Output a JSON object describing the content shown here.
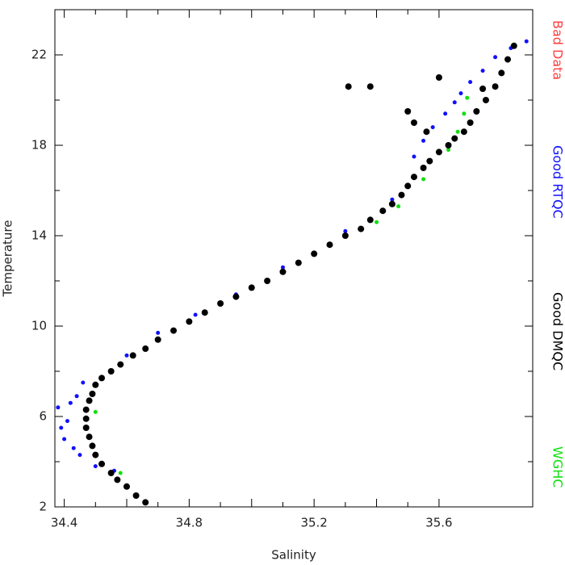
{
  "chart_data": {
    "type": "scatter",
    "x_label": "Salinity",
    "y_label": "Temperature",
    "xlim": [
      34.37,
      35.9
    ],
    "ylim": [
      2,
      24
    ],
    "xticks": [
      34.4,
      34.8,
      35.2,
      35.6
    ],
    "yticks": [
      2,
      6,
      10,
      14,
      18,
      22
    ],
    "series": [
      {
        "name": "Bad Data",
        "color": "#ff4040",
        "x": [],
        "values": []
      },
      {
        "name": "Good RTQC",
        "color": "#1010ff",
        "x": [
          34.38,
          34.39,
          34.4,
          34.41,
          34.42,
          34.43,
          34.44,
          34.45,
          34.46,
          34.5,
          34.56,
          34.6,
          34.7,
          34.82,
          34.95,
          35.1,
          35.3,
          35.45,
          35.52,
          35.55,
          35.58,
          35.62,
          35.65,
          35.67,
          35.7,
          35.74,
          35.78,
          35.83,
          35.88
        ],
        "values": [
          6.4,
          5.5,
          5.0,
          5.8,
          6.6,
          4.6,
          6.9,
          4.3,
          7.5,
          3.8,
          3.6,
          8.7,
          9.7,
          10.5,
          11.4,
          12.6,
          14.2,
          15.6,
          17.5,
          18.2,
          18.8,
          19.4,
          19.9,
          20.3,
          20.8,
          21.3,
          21.9,
          22.3,
          22.6
        ]
      },
      {
        "name": "Good DMQC",
        "color": "#000000",
        "x": [
          34.66,
          34.63,
          34.6,
          34.57,
          34.55,
          34.52,
          34.5,
          34.49,
          34.48,
          34.47,
          34.47,
          34.47,
          34.48,
          34.49,
          34.5,
          34.52,
          34.55,
          34.58,
          34.62,
          34.66,
          34.7,
          34.75,
          34.8,
          34.85,
          34.9,
          34.95,
          35.0,
          35.05,
          35.1,
          35.15,
          35.2,
          35.25,
          35.3,
          35.35,
          35.38,
          35.42,
          35.45,
          35.48,
          35.5,
          35.52,
          35.55,
          35.57,
          35.6,
          35.63,
          35.65,
          35.68,
          35.7,
          35.72,
          35.75,
          35.78,
          35.8,
          35.82,
          35.84,
          35.31,
          35.38,
          35.5,
          35.56,
          35.6,
          35.74,
          35.52
        ],
        "values": [
          2.2,
          2.5,
          2.9,
          3.2,
          3.5,
          3.9,
          4.3,
          4.7,
          5.1,
          5.5,
          5.9,
          6.3,
          6.7,
          7.0,
          7.4,
          7.7,
          8.0,
          8.3,
          8.7,
          9.0,
          9.4,
          9.8,
          10.2,
          10.6,
          11.0,
          11.3,
          11.7,
          12.0,
          12.4,
          12.8,
          13.2,
          13.6,
          14.0,
          14.3,
          14.7,
          15.1,
          15.4,
          15.8,
          16.2,
          16.6,
          17.0,
          17.3,
          17.7,
          18.0,
          18.3,
          18.6,
          19.0,
          19.5,
          20.0,
          20.6,
          21.2,
          21.8,
          22.4,
          20.6,
          20.6,
          19.5,
          18.6,
          21.0,
          20.5,
          19.0
        ]
      },
      {
        "name": "WGHC",
        "color": "#10e010",
        "x": [
          34.5,
          34.58,
          35.4,
          35.47,
          35.55,
          35.63,
          35.66,
          35.68,
          35.69
        ],
        "values": [
          6.2,
          3.5,
          14.6,
          15.3,
          16.5,
          17.8,
          18.6,
          19.4,
          20.1
        ]
      }
    ]
  }
}
